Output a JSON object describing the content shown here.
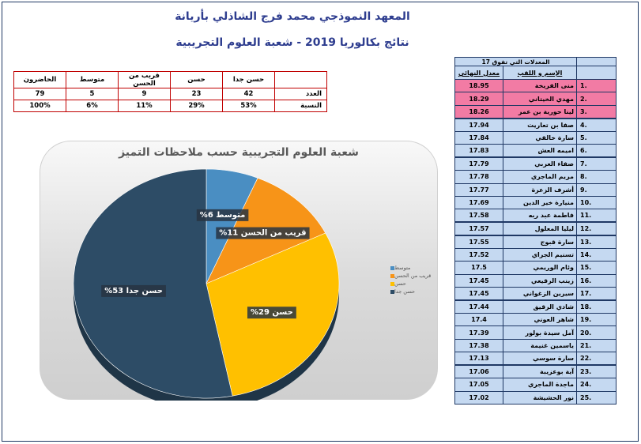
{
  "header": {
    "title": "المعهد النموذجي محمد فرج الشاذلي بأريانة",
    "subtitle": "نتائج بكالوريا 2019 - شعبة العلوم التجريبية"
  },
  "stats_table": {
    "headers": [
      "الحاضرون",
      "متوسط",
      "قريب من الحسن",
      "حسن",
      "حسن جدا",
      ""
    ],
    "rows": [
      {
        "label": "العدد",
        "cells": [
          "79",
          "5",
          "9",
          "23",
          "42"
        ]
      },
      {
        "label": "النسبة",
        "cells": [
          "100%",
          "6%",
          "11%",
          "29%",
          "53%"
        ]
      }
    ]
  },
  "chart_data": {
    "type": "pie",
    "title": "شعبة العلوم التجريبية حسب ملاحظات التميز",
    "categories": [
      "متوسط",
      "قريب من الحسن",
      "حسن",
      "حسن جدا"
    ],
    "values": [
      5,
      9,
      23,
      42
    ],
    "percent_labels": [
      "متوسط 6%",
      "قريب من الحسن 11%",
      "حسن 29%",
      "حسن جدا 53%"
    ],
    "colors": [
      "#4a8ec2",
      "#f79418",
      "#ffc000",
      "#2d4c66"
    ],
    "legend_position": "right"
  },
  "ranking": {
    "caption": "المعدلات التي تفوق 17",
    "col_name": "الإسم و اللقب",
    "col_score": "معدل النهائي",
    "rows": [
      {
        "score": "18.95",
        "name": "منى الفريخة",
        "rank": "1."
      },
      {
        "score": "18.29",
        "name": "مهدي الخيتاني",
        "rank": "2."
      },
      {
        "score": "18.26",
        "name": "لينا حورية بن عمر",
        "rank": "3."
      },
      {
        "score": "17.94",
        "name": "صفا بن تعاريت",
        "rank": "4."
      },
      {
        "score": "17.84",
        "name": "سارة خالقي",
        "rank": "5."
      },
      {
        "score": "17.83",
        "name": "اميمه العش",
        "rank": "6."
      },
      {
        "score": "17.79",
        "name": "صفاء العربي",
        "rank": "7."
      },
      {
        "score": "17.78",
        "name": "مريم الماجري",
        "rank": "8."
      },
      {
        "score": "17.77",
        "name": "أشرف الزعرة",
        "rank": "9."
      },
      {
        "score": "17.69",
        "name": "منيارة خير الدين",
        "rank": "10."
      },
      {
        "score": "17.58",
        "name": "فاطمة عبد ربه",
        "rank": "11."
      },
      {
        "score": "17.57",
        "name": "ليليا المعلول",
        "rank": "12."
      },
      {
        "score": "17.55",
        "name": "سارة قبوج",
        "rank": "13."
      },
      {
        "score": "17.52",
        "name": "تسنيم الجراي",
        "rank": "14."
      },
      {
        "score": "17.5",
        "name": "وئام الوريمي",
        "rank": "15."
      },
      {
        "score": "17.45",
        "name": "زينب الرقيعي",
        "rank": "16."
      },
      {
        "score": "17.45",
        "name": "سيرين الزغواني",
        "rank": "17."
      },
      {
        "score": "17.44",
        "name": "شادي الرقيق",
        "rank": "18."
      },
      {
        "score": "17.4",
        "name": "شاهر العوني",
        "rank": "19."
      },
      {
        "score": "17.39",
        "name": "آمل سيدة بولور",
        "rank": "20."
      },
      {
        "score": "17.38",
        "name": "ياسمين غنيمة",
        "rank": "21."
      },
      {
        "score": "17.13",
        "name": "سارة سوسي",
        "rank": "22."
      },
      {
        "score": "17.06",
        "name": "آية بوعزيبة",
        "rank": "23."
      },
      {
        "score": "17.05",
        "name": "ماجدة الماجري",
        "rank": "24."
      },
      {
        "score": "17.02",
        "name": "نور الحشيشة",
        "rank": "25."
      }
    ]
  }
}
